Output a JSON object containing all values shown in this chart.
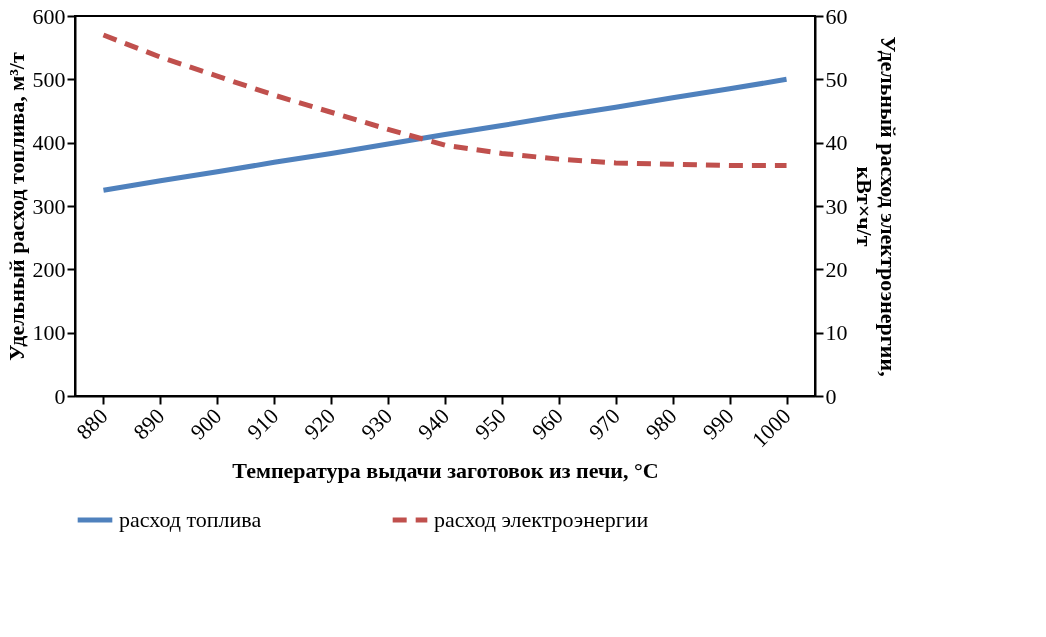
{
  "chart_data": {
    "type": "line",
    "xlabel": "Температура выдачи заготовок из печи, °C",
    "ylabel": "Удельный расход топлива, м³/т",
    "y2label": "Удельный расход электроэнергии,\nкВт×ч/т",
    "categories": [
      "880",
      "890",
      "900",
      "910",
      "920",
      "930",
      "940",
      "950",
      "960",
      "970",
      "980",
      "990",
      "1000"
    ],
    "series": [
      {
        "name": "расход топлива",
        "color": "#4f81bd",
        "line_style": "solid",
        "values": [
          325,
          340,
          354,
          369,
          383,
          398,
          413,
          427,
          442,
          456,
          471,
          485,
          500
        ]
      },
      {
        "name": "расход электроэнергии",
        "color": "#c0504d",
        "line_style": "dashed",
        "axis": "y2",
        "values": [
          57,
          53.5,
          50.5,
          47.5,
          44.8,
          42.1,
          39.6,
          38.3,
          37.4,
          36.8,
          36.6,
          36.4,
          36.4
        ]
      }
    ],
    "ylim": [
      0,
      600
    ],
    "yticks": [
      0,
      100,
      200,
      300,
      400,
      500,
      600
    ],
    "y2lim": [
      0,
      60
    ],
    "y2ticks": [
      0,
      10,
      20,
      30,
      40,
      50,
      60
    ],
    "grid": false,
    "legend": "bottom",
    "marker": "none"
  }
}
